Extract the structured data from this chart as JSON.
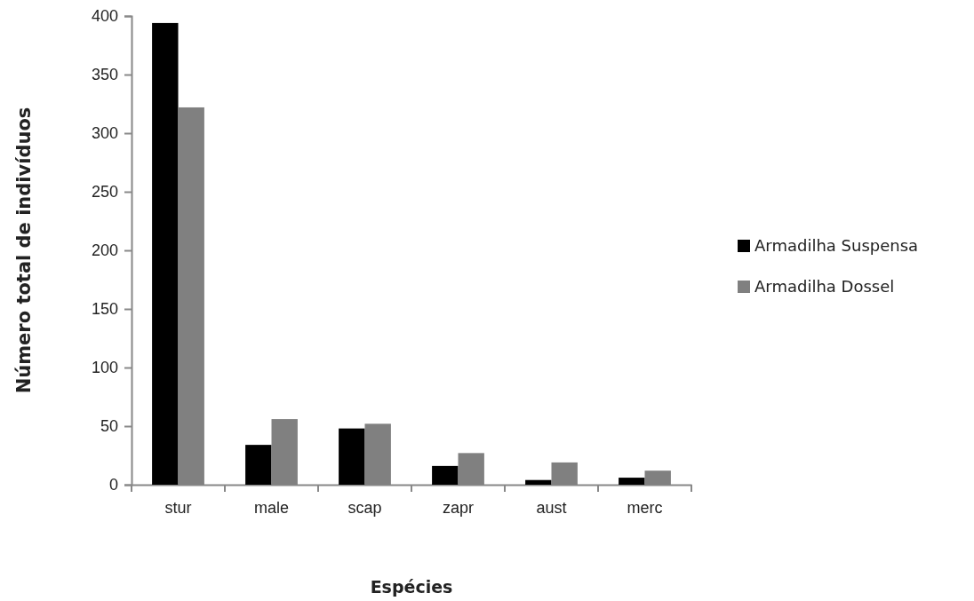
{
  "chart_data": {
    "type": "bar",
    "xlabel": "Espécies",
    "ylabel": "Número total de indivíduos",
    "categories": [
      "stur",
      "male",
      "scap",
      "zapr",
      "aust",
      "merc"
    ],
    "series": [
      {
        "name": "Armadilha Suspensa",
        "color": "#000000",
        "values": [
          394,
          34,
          48,
          16,
          4,
          6
        ]
      },
      {
        "name": "Armadilha Dossel",
        "color": "#808080",
        "values": [
          322,
          56,
          52,
          27,
          19,
          12
        ]
      }
    ],
    "ylim": [
      0,
      400
    ],
    "yticks": [
      0,
      50,
      100,
      150,
      200,
      250,
      300,
      350,
      400
    ],
    "grid": false,
    "legend": "right"
  }
}
